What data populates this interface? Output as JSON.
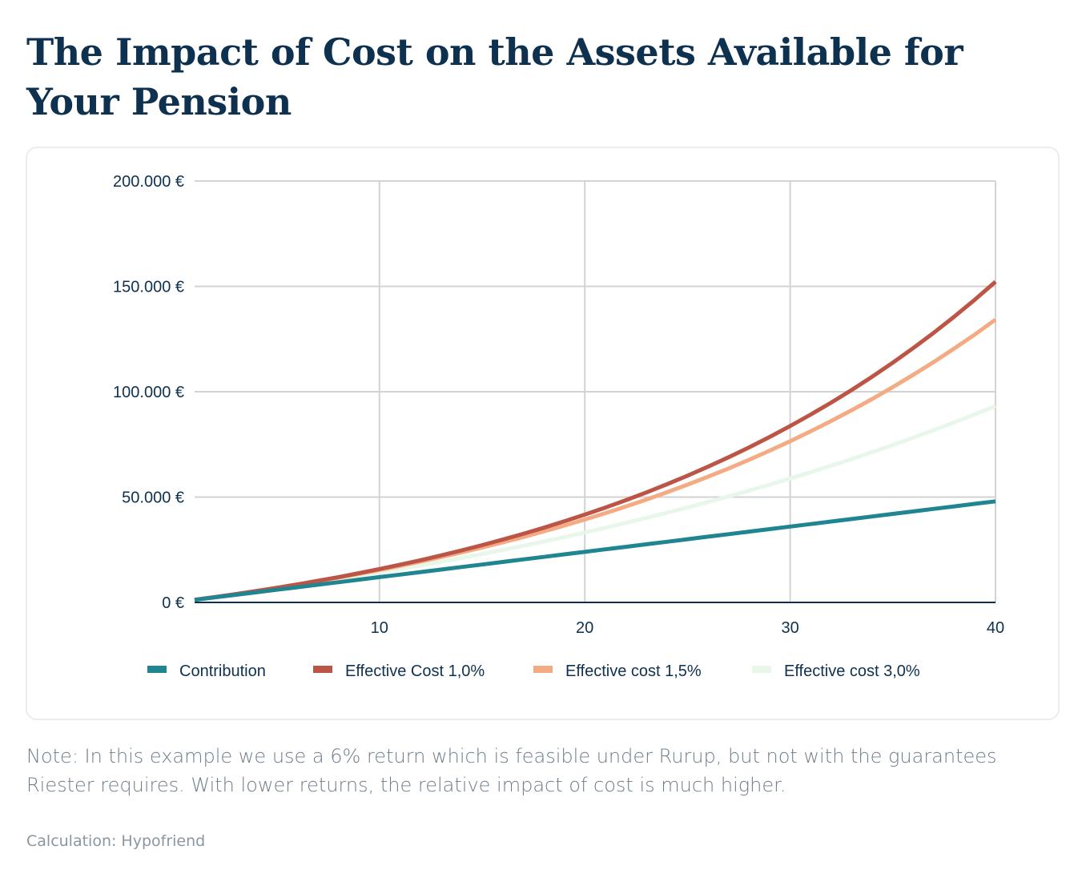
{
  "title": "The Impact of Cost on the Assets Available for Your Pension",
  "note": "Note: In this example we use a 6% return which is feasible under Rurup, but not with the guarantees Riester requires. With lower returns, the relative impact of cost is much higher.",
  "source": "Calculation: Hypofriend",
  "chart_data": {
    "type": "line",
    "title": "",
    "xlabel": "",
    "ylabel": "",
    "xlim": [
      1,
      40
    ],
    "ylim": [
      0,
      200000
    ],
    "x_ticks": [
      10,
      20,
      30,
      40
    ],
    "x_tick_labels": [
      "10",
      "20",
      "30",
      "40"
    ],
    "y_ticks": [
      0,
      50000,
      100000,
      150000,
      200000
    ],
    "y_tick_labels": [
      "0 €",
      "50.000 €",
      "100.000 €",
      "150.000 €",
      "200.000 €"
    ],
    "grid": true,
    "legend_position": "bottom",
    "x": [
      1,
      2,
      3,
      4,
      5,
      6,
      7,
      8,
      9,
      10,
      11,
      12,
      13,
      14,
      15,
      16,
      17,
      18,
      19,
      20,
      21,
      22,
      23,
      24,
      25,
      26,
      27,
      28,
      29,
      30,
      31,
      32,
      33,
      34,
      35,
      36,
      37,
      38,
      39,
      40
    ],
    "series": [
      {
        "name": "Contribution",
        "color": "#1e8591",
        "values": [
          1200,
          2400,
          3600,
          4800,
          6000,
          7200,
          8400,
          9600,
          10800,
          12000,
          13200,
          14400,
          15600,
          16800,
          18000,
          19200,
          20400,
          21600,
          22800,
          24000,
          25200,
          26400,
          27600,
          28800,
          30000,
          31200,
          32400,
          33600,
          34800,
          36000,
          37200,
          38400,
          39600,
          40800,
          42000,
          43200,
          44400,
          45600,
          46800,
          48000
        ]
      },
      {
        "name": "Effective Cost 1,0%",
        "color": "#bd5546",
        "values": [
          1260,
          2583,
          3972,
          5431,
          6963,
          8570,
          10259,
          12032,
          13893,
          15848,
          17901,
          20056,
          22318,
          24694,
          27189,
          29808,
          32559,
          35447,
          38479,
          41663,
          45006,
          48517,
          52202,
          56073,
          60136,
          64403,
          68883,
          73587,
          78527,
          83713,
          89159,
          94877,
          100880,
          107184,
          113804,
          120754,
          128051,
          135714,
          143760,
          152208
        ]
      },
      {
        "name": "Effective cost 1,5%",
        "color": "#f4ab84",
        "values": [
          1254,
          2564,
          3934,
          5365,
          6860,
          8423,
          10056,
          11763,
          13546,
          15410,
          17357,
          19392,
          21519,
          23741,
          26064,
          28491,
          31027,
          33677,
          36446,
          39340,
          42364,
          45525,
          48827,
          52279,
          55885,
          59654,
          63592,
          67708,
          72009,
          76503,
          81200,
          86108,
          91236,
          96596,
          102197,
          108049,
          114166,
          120557,
          127236,
          134216
        ]
      },
      {
        "name": "Effective cost 3,0%",
        "color": "#e8f7ea",
        "values": [
          1236,
          2509,
          3820,
          5171,
          6562,
          7995,
          9471,
          10991,
          12557,
          14169,
          15830,
          17541,
          19304,
          21119,
          22988,
          24914,
          26897,
          28940,
          31044,
          33212,
          35444,
          37744,
          40112,
          42551,
          45064,
          47652,
          50317,
          53063,
          55891,
          58803,
          61803,
          64893,
          68076,
          71354,
          74731,
          78209,
          81791,
          85481,
          89281,
          93196
        ]
      }
    ],
    "colors": {
      "axis_text": "#0e3150",
      "grid": "#d3d3d3",
      "baseline": "#0e3150"
    }
  }
}
